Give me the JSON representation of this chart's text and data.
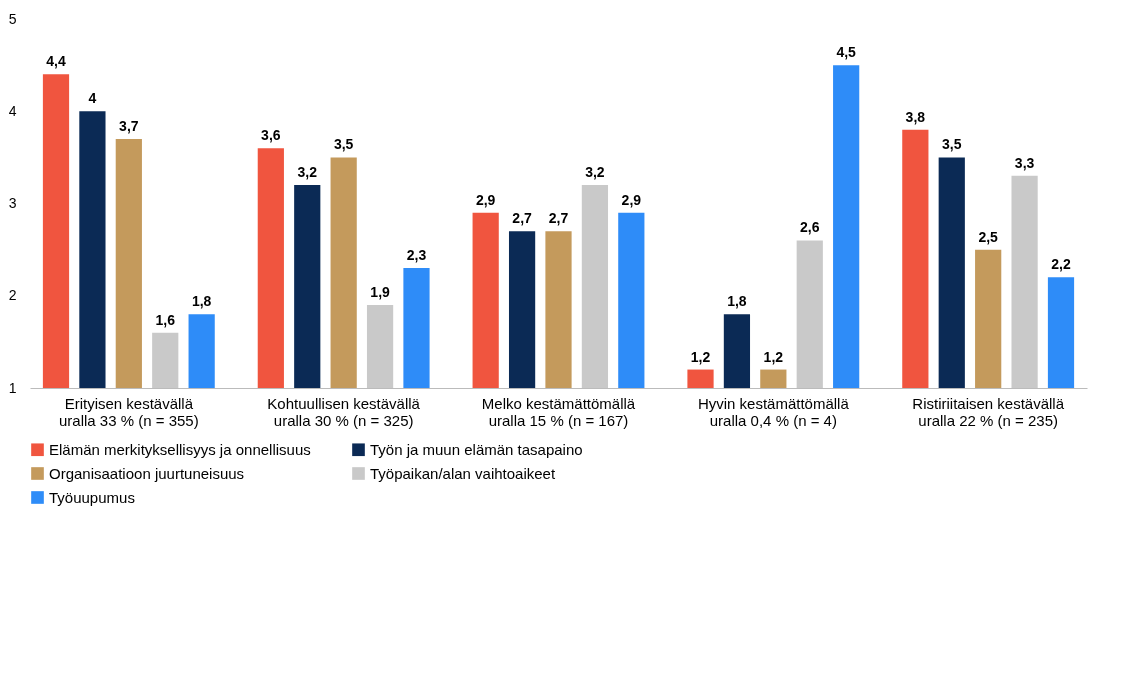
{
  "chart_data": {
    "type": "bar",
    "categories": [
      "Erityisen kestävällä\nuralla 33 % (n = 355)",
      "Kohtuullisen kestävällä\nuralla 30 % (n = 325)",
      "Melko kestämättömällä\nuralla 15 % (n = 167)",
      "Hyvin kestämättömällä\nuralla 0,4 % (n = 4)",
      "Ristiriitaisen kestävällä\nuralla 22 % (n = 235)"
    ],
    "series": [
      {
        "name": "Elämän merkityksellisyys ja onnellisuus",
        "color": "#f0553f",
        "values": [
          4.4,
          3.6,
          2.9,
          1.2,
          3.8
        ],
        "value_labels": [
          "4,4",
          "3,6",
          "2,9",
          "1,2",
          "3,8"
        ]
      },
      {
        "name": "Työn ja muun elämän tasapaino",
        "color": "#0b2a55",
        "values": [
          4,
          3.2,
          2.7,
          1.8,
          3.5
        ],
        "value_labels": [
          "4",
          "3,2",
          "2,7",
          "1,8",
          "3,5"
        ]
      },
      {
        "name": "Organisaatioon juurtuneisuus",
        "color": "#c49a5c",
        "values": [
          3.7,
          3.5,
          2.7,
          1.2,
          2.5
        ],
        "value_labels": [
          "3,7",
          "3,5",
          "2,7",
          "1,2",
          "2,5"
        ]
      },
      {
        "name": "Työpaikan/alan vaihtoaikeet",
        "color": "#c9c9c9",
        "values": [
          1.6,
          1.9,
          3.2,
          2.6,
          3.3
        ],
        "value_labels": [
          "1,6",
          "1,9",
          "3,2",
          "2,6",
          "3,3"
        ]
      },
      {
        "name": "Työuupumus",
        "color": "#2e8cf8",
        "values": [
          1.8,
          2.3,
          2.9,
          4.5,
          2.2
        ],
        "value_labels": [
          "1,8",
          "2,3",
          "2,9",
          "4,5",
          "2,2"
        ]
      }
    ],
    "ylim": [
      1,
      5
    ],
    "yticks": [
      1,
      2,
      3,
      4,
      5
    ],
    "grid": false,
    "legend": "bottom"
  }
}
